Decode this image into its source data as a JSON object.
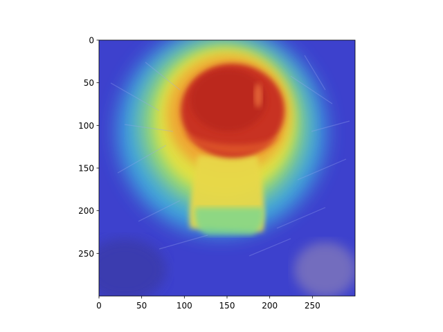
{
  "chart_data": {
    "type": "heatmap",
    "title": "",
    "xlabel": "",
    "ylabel": "",
    "xlim": [
      0,
      300
    ],
    "ylim": [
      300,
      0
    ],
    "x_ticks": [
      0,
      50,
      100,
      150,
      200,
      250
    ],
    "x_tick_labels": [
      "0",
      "50",
      "100",
      "150",
      "200",
      "250"
    ],
    "y_ticks": [
      0,
      50,
      100,
      150,
      200,
      250
    ],
    "y_tick_labels": [
      "0",
      "50",
      "100",
      "150",
      "200",
      "250"
    ],
    "grid": false,
    "colormap": "jet",
    "overlay": "attention heatmap over photograph",
    "colors": {
      "low": "#2a2fd0",
      "mid_low": "#38a8e8",
      "mid": "#e8e040",
      "mid_high": "#f0a030",
      "high": "#d83020",
      "axis": "#000000"
    }
  }
}
